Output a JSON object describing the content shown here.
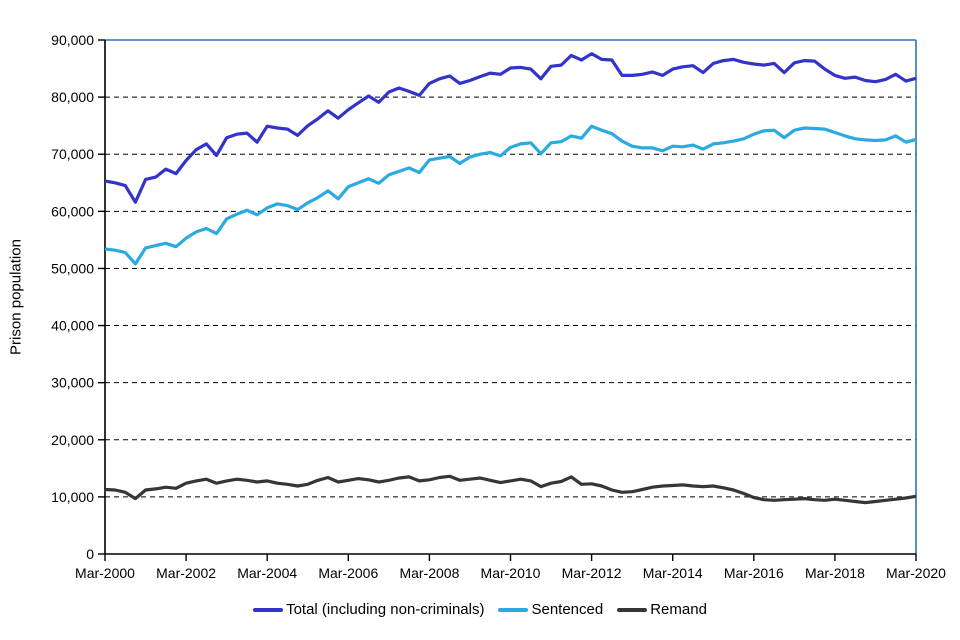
{
  "chart_data": {
    "type": "line",
    "title": "",
    "xlabel": "",
    "ylabel": "Prison population",
    "ylim": [
      0,
      90000
    ],
    "y_ticks": [
      0,
      10000,
      20000,
      30000,
      40000,
      50000,
      60000,
      70000,
      80000,
      90000
    ],
    "y_tick_labels": [
      "0",
      "10,000",
      "20,000",
      "30,000",
      "40,000",
      "50,000",
      "60,000",
      "70,000",
      "80,000",
      "90,000"
    ],
    "x_tick_every": 8,
    "x_tick_labels": [
      "Mar-2000",
      "Mar-2002",
      "Mar-2004",
      "Mar-2006",
      "Mar-2008",
      "Mar-2010",
      "Mar-2012",
      "Mar-2014",
      "Mar-2016",
      "Mar-2018",
      "Mar-2020"
    ],
    "grid": "horizontal-dashed",
    "legend_position": "bottom-center",
    "frame_color": "#2e75b6",
    "axis_color": "#000000",
    "grid_color": "#000000",
    "categories": [
      "Mar-2000",
      "Jun-2000",
      "Sep-2000",
      "Dec-2000",
      "Mar-2001",
      "Jun-2001",
      "Sep-2001",
      "Dec-2001",
      "Mar-2002",
      "Jun-2002",
      "Sep-2002",
      "Dec-2002",
      "Mar-2003",
      "Jun-2003",
      "Sep-2003",
      "Dec-2003",
      "Mar-2004",
      "Jun-2004",
      "Sep-2004",
      "Dec-2004",
      "Mar-2005",
      "Jun-2005",
      "Sep-2005",
      "Dec-2005",
      "Mar-2006",
      "Jun-2006",
      "Sep-2006",
      "Dec-2006",
      "Mar-2007",
      "Jun-2007",
      "Sep-2007",
      "Dec-2007",
      "Mar-2008",
      "Jun-2008",
      "Sep-2008",
      "Dec-2008",
      "Mar-2009",
      "Jun-2009",
      "Sep-2009",
      "Dec-2009",
      "Mar-2010",
      "Jun-2010",
      "Sep-2010",
      "Dec-2010",
      "Mar-2011",
      "Jun-2011",
      "Sep-2011",
      "Dec-2011",
      "Mar-2012",
      "Jun-2012",
      "Sep-2012",
      "Dec-2012",
      "Mar-2013",
      "Jun-2013",
      "Sep-2013",
      "Dec-2013",
      "Mar-2014",
      "Jun-2014",
      "Sep-2014",
      "Dec-2014",
      "Mar-2015",
      "Jun-2015",
      "Sep-2015",
      "Dec-2015",
      "Mar-2016",
      "Jun-2016",
      "Sep-2016",
      "Dec-2016",
      "Mar-2017",
      "Jun-2017",
      "Sep-2017",
      "Dec-2017",
      "Mar-2018",
      "Jun-2018",
      "Sep-2018",
      "Dec-2018",
      "Mar-2019",
      "Jun-2019",
      "Sep-2019",
      "Dec-2019",
      "Mar-2020"
    ],
    "series": [
      {
        "name": "Total (including non-criminals)",
        "color": "#3333cc",
        "values": [
          65300,
          65000,
          64500,
          61600,
          65600,
          66000,
          67400,
          66600,
          68900,
          70800,
          71800,
          69800,
          72900,
          73500,
          73700,
          72100,
          74900,
          74600,
          74400,
          73300,
          75000,
          76200,
          77600,
          76300,
          77800,
          79000,
          80200,
          79100,
          80900,
          81600,
          81000,
          80300,
          82400,
          83200,
          83700,
          82400,
          82900,
          83600,
          84200,
          84000,
          85100,
          85200,
          84900,
          83200,
          85400,
          85600,
          87300,
          86500,
          87600,
          86600,
          86500,
          83800,
          83800,
          84000,
          84400,
          83800,
          84900,
          85300,
          85500,
          84300,
          85900,
          86400,
          86600,
          86100,
          85800,
          85600,
          85900,
          84300,
          86000,
          86400,
          86300,
          84900,
          83800,
          83300,
          83500,
          82900,
          82700,
          83100,
          84000,
          82800,
          83300
        ]
      },
      {
        "name": "Sentenced",
        "color": "#29abe2",
        "values": [
          53400,
          53200,
          52800,
          50800,
          53600,
          54000,
          54400,
          53800,
          55300,
          56400,
          57000,
          56100,
          58700,
          59500,
          60200,
          59400,
          60600,
          61300,
          61000,
          60300,
          61500,
          62400,
          63600,
          62200,
          64300,
          65000,
          65700,
          64900,
          66400,
          67000,
          67600,
          66800,
          69000,
          69300,
          69600,
          68400,
          69500,
          70000,
          70300,
          69700,
          71200,
          71800,
          72000,
          70100,
          72000,
          72200,
          73200,
          72800,
          74900,
          74200,
          73600,
          72300,
          71400,
          71100,
          71100,
          70600,
          71400,
          71300,
          71600,
          70900,
          71800,
          72000,
          72300,
          72700,
          73500,
          74100,
          74200,
          72900,
          74200,
          74600,
          74500,
          74400,
          73800,
          73200,
          72700,
          72500,
          72400,
          72500,
          73200,
          72100,
          72600
        ]
      },
      {
        "name": "Remand",
        "color": "#363636",
        "values": [
          11300,
          11200,
          10800,
          9700,
          11200,
          11400,
          11700,
          11500,
          12400,
          12800,
          13100,
          12400,
          12800,
          13100,
          12900,
          12600,
          12800,
          12400,
          12200,
          11900,
          12200,
          12900,
          13400,
          12600,
          12900,
          13200,
          13000,
          12600,
          12900,
          13300,
          13500,
          12800,
          13000,
          13400,
          13600,
          12900,
          13100,
          13300,
          12900,
          12500,
          12800,
          13100,
          12800,
          11800,
          12400,
          12700,
          13500,
          12200,
          12300,
          11900,
          11200,
          10800,
          10900,
          11300,
          11700,
          11900,
          12000,
          12100,
          11900,
          11800,
          11900,
          11600,
          11200,
          10600,
          9900,
          9500,
          9400,
          9500,
          9600,
          9700,
          9500,
          9400,
          9600,
          9400,
          9200,
          9000,
          9200,
          9400,
          9600,
          9800,
          10100
        ]
      }
    ]
  }
}
